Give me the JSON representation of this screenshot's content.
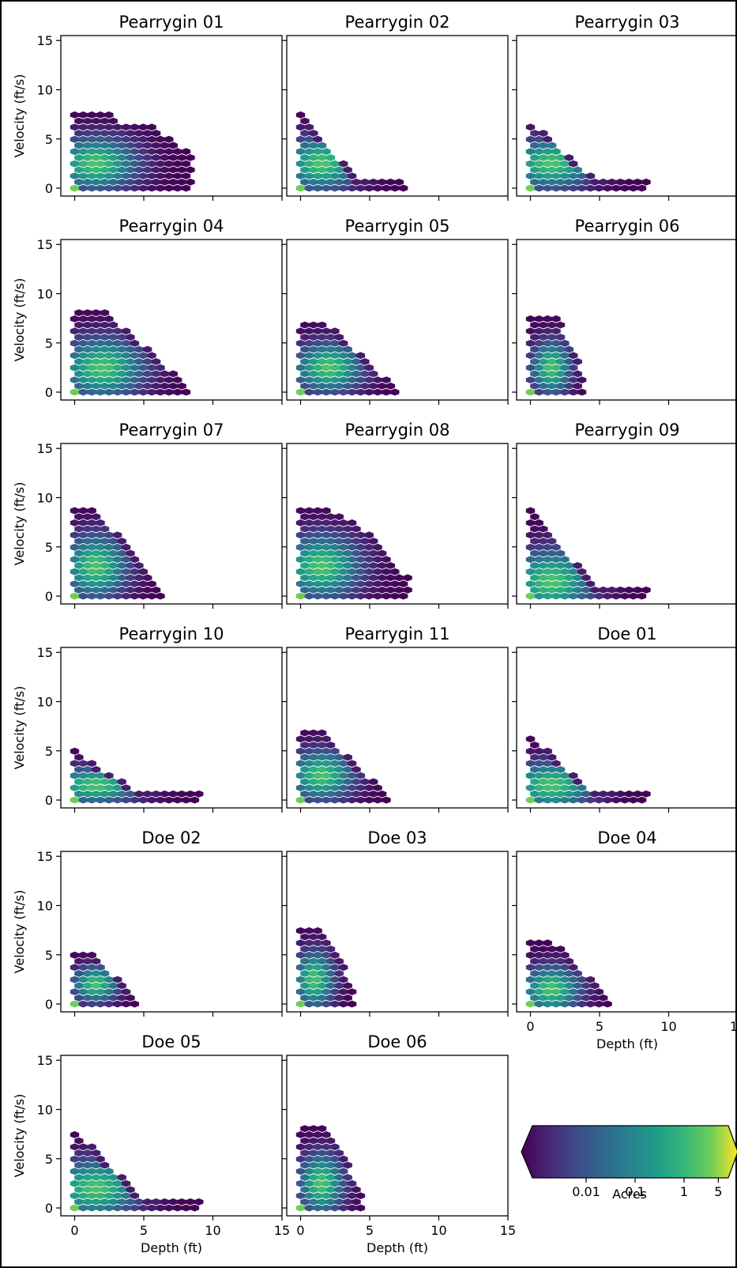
{
  "chart_data": {
    "type": "hexbin",
    "xlabel": "Depth (ft)",
    "ylabel": "Velocity (ft/s)",
    "xlim": [
      -1,
      15
    ],
    "ylim": [
      -0.8,
      15.5
    ],
    "xticks": [
      0,
      5,
      10,
      15
    ],
    "yticks": [
      0,
      5,
      10,
      15
    ],
    "colormap": "viridis",
    "colorbar": {
      "label": "Acres",
      "scale": "log",
      "tick_labels": [
        "0.01",
        "0.1",
        "1",
        "5"
      ],
      "tick_values": [
        0.01,
        0.1,
        1,
        5
      ],
      "range": [
        0.0008,
        8
      ],
      "extend": "both"
    },
    "panels": [
      {
        "title": "Pearrygin 01",
        "depth_max": 8.5,
        "velocity_max": 7.5,
        "peak_depth": 1.5,
        "peak_velocity": 2.5,
        "shape": "plateau"
      },
      {
        "title": "Pearrygin 02",
        "depth_max": 7.5,
        "velocity_max": 7.5,
        "peak_depth": 1.5,
        "peak_velocity": 2.5,
        "shape": "tail"
      },
      {
        "title": "Pearrygin 03",
        "depth_max": 8.5,
        "velocity_max": 7.0,
        "peak_depth": 1.5,
        "peak_velocity": 2.5,
        "shape": "tail"
      },
      {
        "title": "Pearrygin 04",
        "depth_max": 8.5,
        "velocity_max": 8.5,
        "peak_depth": 2.0,
        "peak_velocity": 2.5,
        "shape": "triangle"
      },
      {
        "title": "Pearrygin 05",
        "depth_max": 7.0,
        "velocity_max": 7.0,
        "peak_depth": 2.0,
        "peak_velocity": 2.5,
        "shape": "triangle"
      },
      {
        "title": "Pearrygin 06",
        "depth_max": 4.0,
        "velocity_max": 7.5,
        "peak_depth": 1.5,
        "peak_velocity": 2.5,
        "shape": "narrow"
      },
      {
        "title": "Pearrygin 07",
        "depth_max": 6.5,
        "velocity_max": 9.0,
        "peak_depth": 1.5,
        "peak_velocity": 3.0,
        "shape": "triangle"
      },
      {
        "title": "Pearrygin 08",
        "depth_max": 8.0,
        "velocity_max": 9.0,
        "peak_depth": 1.5,
        "peak_velocity": 3.0,
        "shape": "blob"
      },
      {
        "title": "Pearrygin 09",
        "depth_max": 8.5,
        "velocity_max": 9.0,
        "peak_depth": 1.5,
        "peak_velocity": 1.5,
        "shape": "tail"
      },
      {
        "title": "Pearrygin 10",
        "depth_max": 9.0,
        "velocity_max": 5.0,
        "peak_depth": 1.5,
        "peak_velocity": 1.5,
        "shape": "tail"
      },
      {
        "title": "Pearrygin 11",
        "depth_max": 6.5,
        "velocity_max": 7.0,
        "peak_depth": 1.5,
        "peak_velocity": 2.5,
        "shape": "triangle"
      },
      {
        "title": "Doe 01",
        "depth_max": 8.5,
        "velocity_max": 6.5,
        "peak_depth": 1.5,
        "peak_velocity": 1.5,
        "shape": "tail"
      },
      {
        "title": "Doe 02",
        "depth_max": 4.5,
        "velocity_max": 5.0,
        "peak_depth": 1.5,
        "peak_velocity": 2.0,
        "shape": "small"
      },
      {
        "title": "Doe 03",
        "depth_max": 4.0,
        "velocity_max": 8.0,
        "peak_depth": 1.0,
        "peak_velocity": 2.5,
        "shape": "narrow"
      },
      {
        "title": "Doe 04",
        "depth_max": 6.0,
        "velocity_max": 6.5,
        "peak_depth": 1.5,
        "peak_velocity": 1.5,
        "shape": "triangle"
      },
      {
        "title": "Doe 05",
        "depth_max": 9.0,
        "velocity_max": 8.0,
        "peak_depth": 1.5,
        "peak_velocity": 2.0,
        "shape": "tail"
      },
      {
        "title": "Doe 06",
        "depth_max": 4.5,
        "velocity_max": 8.5,
        "peak_depth": 1.5,
        "peak_velocity": 2.5,
        "shape": "narrow"
      }
    ]
  }
}
